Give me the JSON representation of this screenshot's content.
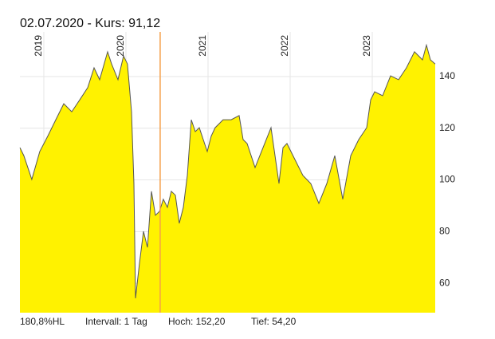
{
  "chart_data": {
    "type": "area",
    "title": "02.07.2020  -  Kurs: 91,12",
    "x": [
      2018.709,
      2018.757,
      2018.854,
      2018.951,
      2019.049,
      2019.146,
      2019.243,
      2019.34,
      2019.437,
      2019.534,
      2019.612,
      2019.68,
      2019.777,
      2019.825,
      2019.903,
      2019.971,
      2020.019,
      2020.068,
      2020.097,
      2020.117,
      2020.165,
      2020.214,
      2020.262,
      2020.311,
      2020.359,
      2020.408,
      2020.456,
      2020.505,
      2020.553,
      2020.602,
      2020.65,
      2020.699,
      2020.748,
      2020.796,
      2020.845,
      2020.893,
      2020.942,
      2020.99,
      2021.039,
      2021.087,
      2021.184,
      2021.282,
      2021.379,
      2021.427,
      2021.476,
      2021.573,
      2021.67,
      2021.767,
      2021.816,
      2021.864,
      2021.913,
      2021.961,
      2022.058,
      2022.155,
      2022.252,
      2022.35,
      2022.447,
      2022.544,
      2022.641,
      2022.738,
      2022.835,
      2022.932,
      2022.981,
      2023.029,
      2023.126,
      2023.223,
      2023.32,
      2023.417,
      2023.515,
      2023.612,
      2023.66,
      2023.709,
      2023.767
    ],
    "values": [
      112.5,
      109.4,
      100.2,
      111,
      117,
      123.3,
      129.5,
      126.4,
      131,
      135.7,
      143.4,
      138.8,
      149.6,
      144.9,
      138.8,
      148,
      144.9,
      126.4,
      98.6,
      54.2,
      67.8,
      80.1,
      73.9,
      95.6,
      86.3,
      87.8,
      92.5,
      89.4,
      95.6,
      94.1,
      83.2,
      89.4,
      101.7,
      123.3,
      118.7,
      120.2,
      115.6,
      111,
      117,
      120.2,
      123.3,
      123.3,
      124.9,
      115.6,
      114.1,
      104.8,
      112.5,
      120.2,
      109.4,
      98.6,
      112.5,
      114.1,
      107.9,
      101.7,
      98.6,
      90.9,
      98.6,
      109.4,
      92.5,
      109.4,
      115.6,
      120.2,
      131,
      134.1,
      132.6,
      140.3,
      138.8,
      143.4,
      149.6,
      146.5,
      152.2,
      146.5,
      144.9
    ],
    "color": "#fff200",
    "line_color": "#555555",
    "xlim": [
      2018.709,
      2023.767
    ],
    "xticks": [
      2019,
      2020,
      2021,
      2022,
      2023
    ],
    "ylim": [
      48.6,
      157.3
    ],
    "yticks": [
      60,
      80,
      100,
      120,
      140
    ],
    "grid": true,
    "cursor_x": 2020.417,
    "cursor_color": "#f5a04a",
    "footer": [
      "180,8%HL",
      "Intervall: 1 Tag",
      "Hoch: 152,20",
      "Tief: 54,20"
    ]
  }
}
